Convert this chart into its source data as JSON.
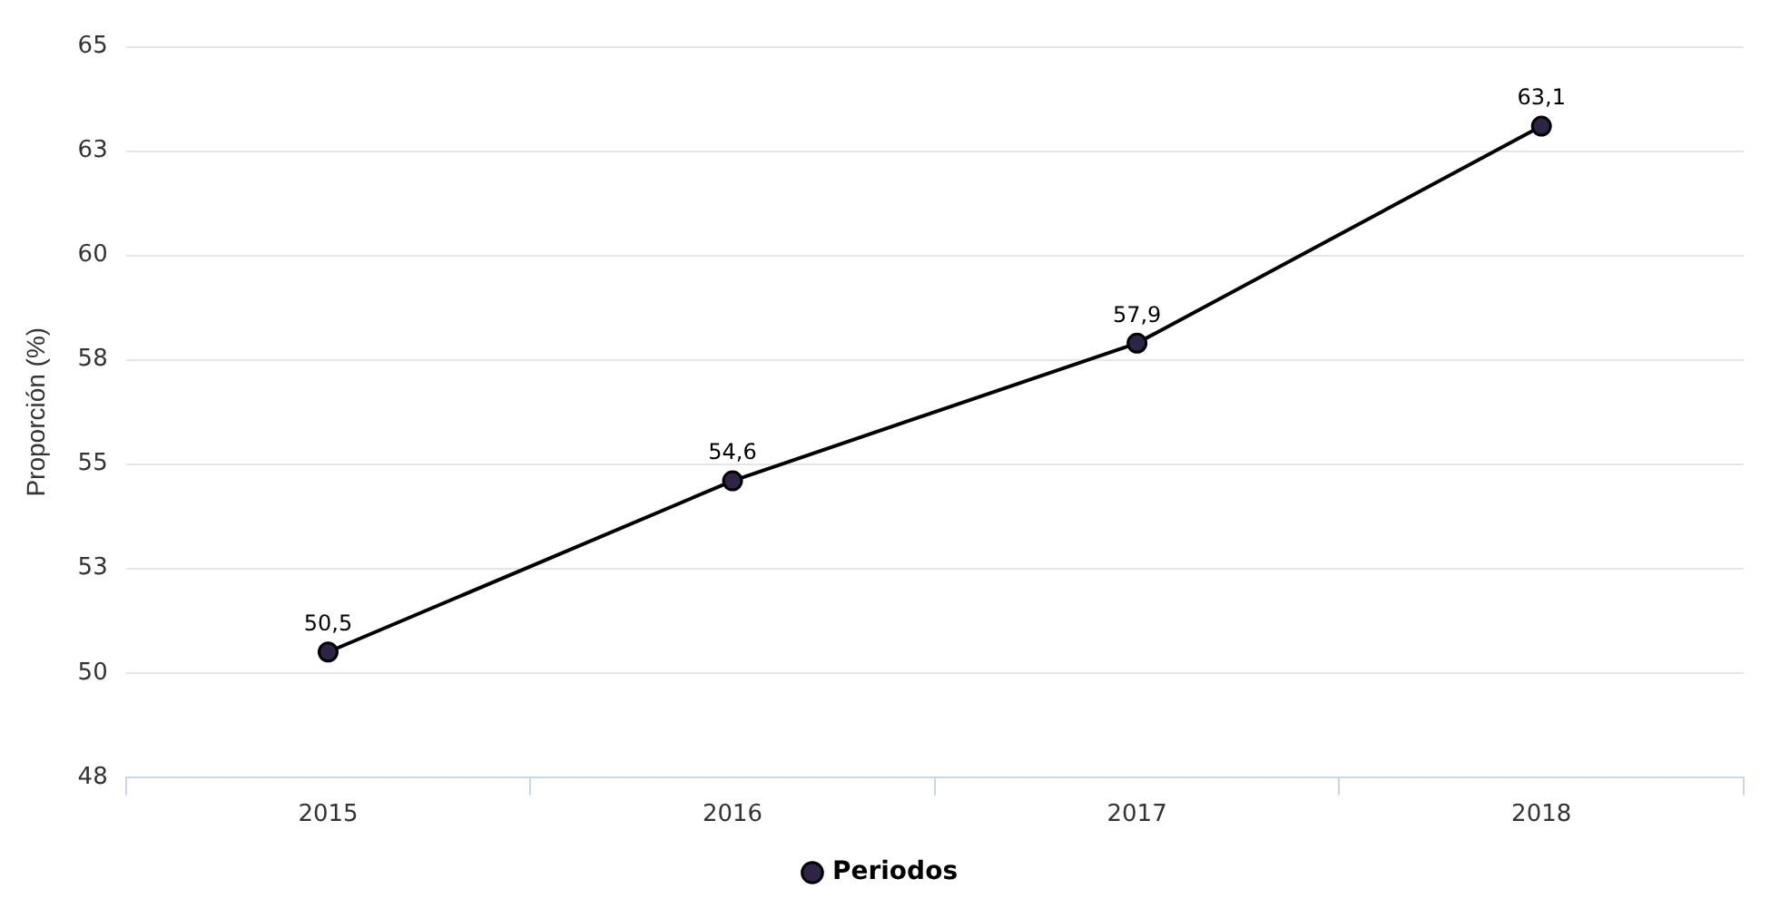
{
  "chart_data": {
    "type": "line",
    "ylabel": "Proporción (%)",
    "categories": [
      "2015",
      "2016",
      "2017",
      "2018"
    ],
    "series": [
      {
        "name": "Periodos",
        "color": "#2e2445",
        "values": [
          50.5,
          54.6,
          57.9,
          63.1
        ],
        "value_labels": [
          "50,5",
          "54,6",
          "57,9",
          "63,1"
        ]
      }
    ],
    "ylim": [
      47.5,
      65
    ],
    "yticks": [
      {
        "value": 47.5,
        "label": "48"
      },
      50,
      {
        "value": 52.5,
        "label": "53"
      },
      55,
      {
        "value": 57.5,
        "label": "58"
      },
      60,
      {
        "value": 62.5,
        "label": "63"
      },
      65
    ],
    "grid": "y",
    "legend": "bottom",
    "marker": "circle",
    "line_style": "solid"
  }
}
